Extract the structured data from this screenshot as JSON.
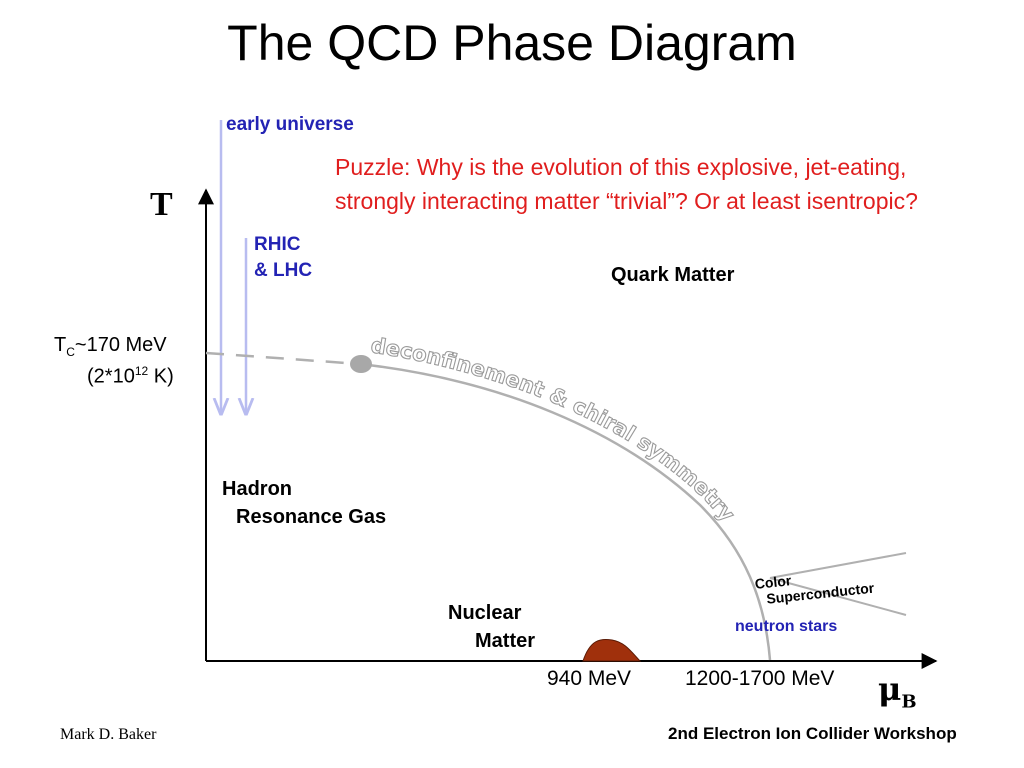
{
  "title": "The QCD Phase Diagram",
  "puzzle": "Puzzle: Why is the evolution of this explosive, jet-eating, strongly interacting matter “trivial”? Or at least isentropic?",
  "axes": {
    "y": "T",
    "x_base": "μ",
    "x_sub": "B"
  },
  "tc_line1_prefix": "T",
  "tc_line1_sub": "C",
  "tc_line1_value": "~170 MeV",
  "tc_line2_prefix": "(2*10",
  "tc_line2_sup": "12",
  "tc_line2_suffix": " K)",
  "labels": {
    "early_universe": "early universe",
    "rhic_line1": "RHIC",
    "rhic_line2": "& LHC",
    "quark_matter": "Quark Matter",
    "hadron_line1": "Hadron",
    "hadron_line2": "Resonance Gas",
    "nuclear_line1": "Nuclear",
    "nuclear_line2": "Matter",
    "color_line1": "Color",
    "color_line2": "Superconductor",
    "neutron_stars": "neutron stars",
    "transition_text": "deconfinement & chiral symmetry"
  },
  "x_ticks": {
    "nuclear": "940 MeV",
    "neutron": "1200-1700 MeV"
  },
  "footer": {
    "author": "Mark D. Baker",
    "workshop": "2nd Electron Ion Collider Workshop"
  },
  "colors": {
    "arrow_blue": "#b8bcf0",
    "label_blue": "#2323b4",
    "puzzle_red": "#e01e1e",
    "boundary_gray": "#b0b0b0",
    "critical_point": "#a8a8a8",
    "nuclear_bump": "#a0300c"
  }
}
